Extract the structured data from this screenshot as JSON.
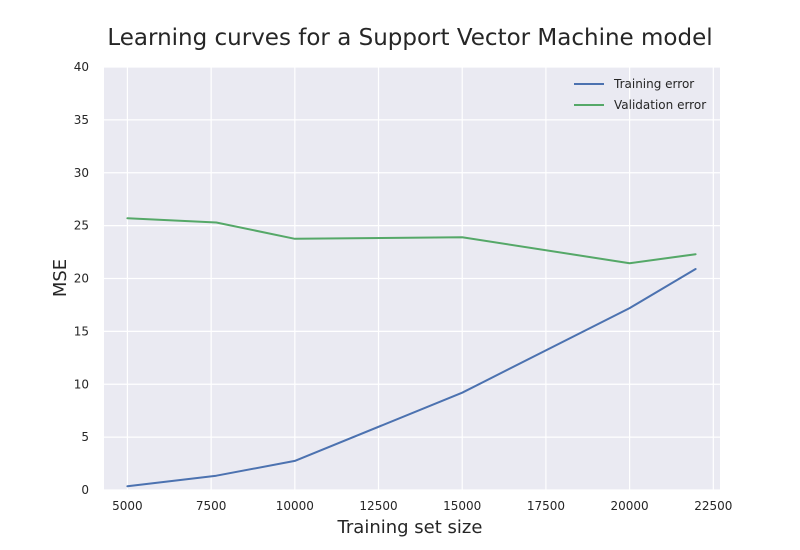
{
  "chart_data": {
    "type": "line",
    "title": "Learning curves for a Support Vector Machine model",
    "xlabel": "Training set size",
    "ylabel": "MSE",
    "xlim": [
      4300,
      22700
    ],
    "ylim": [
      0,
      40
    ],
    "xticks": [
      5000,
      7500,
      10000,
      12500,
      15000,
      17500,
      20000,
      22500
    ],
    "yticks": [
      0,
      5,
      10,
      15,
      20,
      25,
      30,
      35,
      40
    ],
    "grid": true,
    "legend_position": "top-right",
    "series": [
      {
        "name": "Training error",
        "color": "#4c72b0",
        "x": [
          5000,
          7654,
          10000,
          15000,
          20000,
          21972
        ],
        "y": [
          0.35,
          1.35,
          2.75,
          9.2,
          17.2,
          20.9
        ]
      },
      {
        "name": "Validation error",
        "color": "#55a868",
        "x": [
          5000,
          7654,
          10000,
          15000,
          20000,
          21972
        ],
        "y": [
          25.7,
          25.3,
          23.75,
          23.9,
          21.45,
          22.3
        ]
      }
    ]
  },
  "style": {
    "plot_background": "#eaeaf2",
    "grid_color": "#ffffff"
  }
}
